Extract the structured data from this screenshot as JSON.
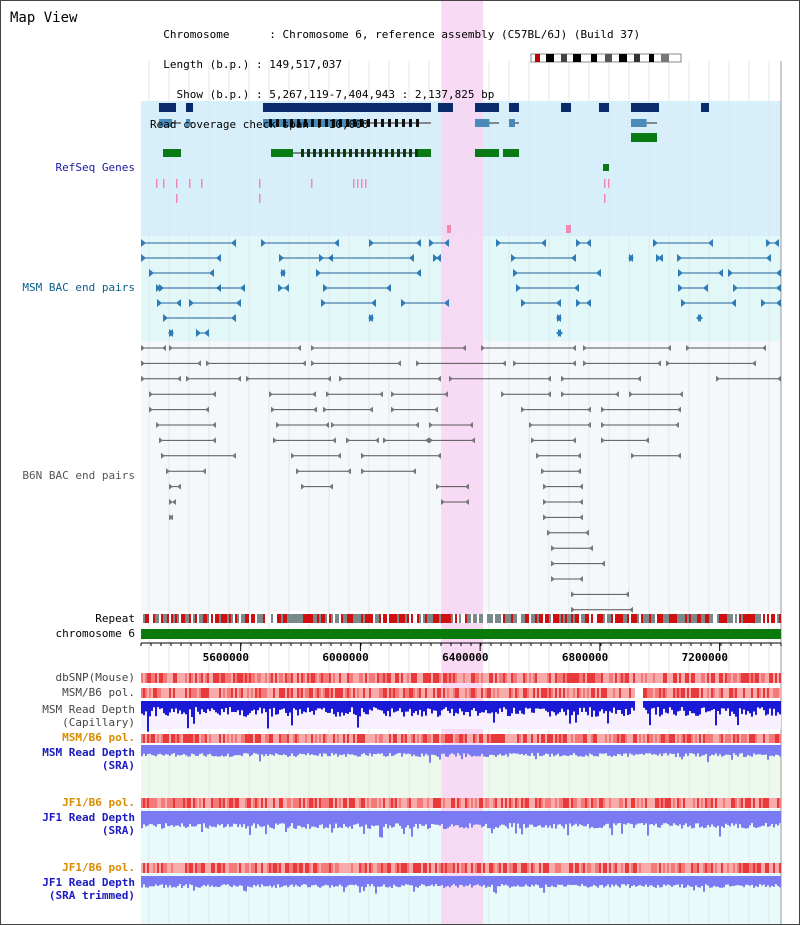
{
  "view": {
    "title": "Map View",
    "info_lines": [
      "  Chromosome      : Chromosome 6, reference assembly (C57BL/6J) (Build 37)",
      "  Length (b.p.) : 149,517,037",
      "    Show (b.p.) : 5,267,119-7,404,943 : 2,137,825 bp",
      "Read coverage check span : 10,000"
    ]
  },
  "tracks": {
    "refseq": {
      "label": "RefSeq Genes",
      "color": "#00008b"
    },
    "msm_bac": {
      "label": "MSM BAC end pairs",
      "color": "#00638b"
    },
    "b6n_bac": {
      "label": "B6N BAC end pairs",
      "color": "#555555"
    },
    "repeat": {
      "label": "Repeat"
    },
    "chromosome": {
      "label": "chromosome 6"
    },
    "dbsnp": {
      "label": "dbSNP(Mouse)"
    },
    "msm_b6_pol": {
      "label": "MSM/B6 pol."
    },
    "msm_depth_cap": {
      "label": "MSM Read Depth\n(Capillary)"
    },
    "msm_b6_pol2": {
      "label": "MSM/B6 pol.",
      "color": "#d98c00"
    },
    "msm_depth_sra": {
      "label": "MSM Read Depth\n(SRA)",
      "color": "#0000cc"
    },
    "jf1_b6_pol": {
      "label": "JF1/B6 pol.",
      "color": "#d98c00"
    },
    "jf1_depth_sra": {
      "label": "JF1 Read Depth\n(SRA)",
      "color": "#0000cc"
    },
    "jf1_b6_pol2": {
      "label": "JF1/B6 pol.",
      "color": "#d98c00"
    },
    "jf1_depth_trim": {
      "label": "JF1 Read Depth\n(SRA trimmed)",
      "color": "#0000cc"
    }
  },
  "axis": {
    "range": [
      5267119,
      7404943
    ],
    "ticks": [
      "5600000",
      "6000000",
      "6400000",
      "6800000",
      "7200000"
    ],
    "tick_values": [
      5600000,
      6000000,
      6400000,
      6800000,
      7200000
    ]
  },
  "highlight": {
    "from": 6270000,
    "to": 6410000,
    "color": "#f7d6f3"
  },
  "colors": {
    "refseq_gene": "#0a2a6a",
    "refseq_transcript": "#4a8ab8",
    "refseq_cds": "#0a7a14",
    "refseq_bg": "#d7effa",
    "msm_bg": "#e2f8f8",
    "b6n_bg": "#f4f8fa",
    "depth_bg": "#edf9ed",
    "chromosome_bar": "#0a7a0a",
    "snp": "#ee5a5a",
    "depth": "#1a1ad6",
    "depth_light": "#7a7af2"
  }
}
